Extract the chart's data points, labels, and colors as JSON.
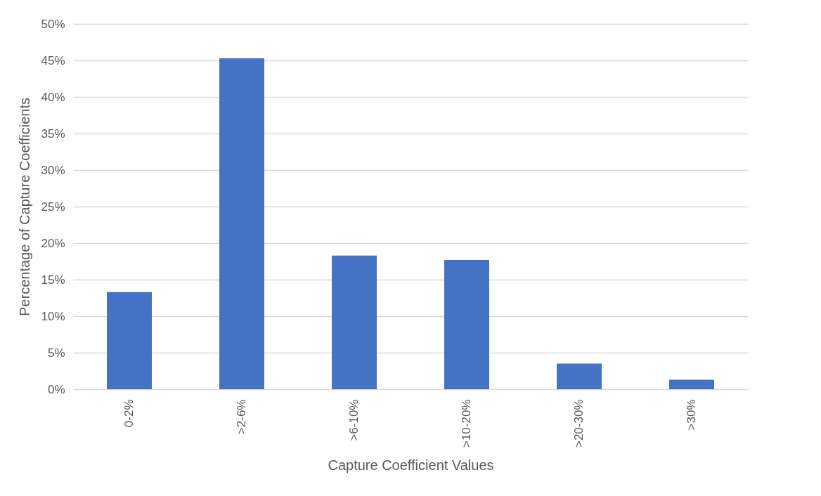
{
  "chart_data": {
    "type": "bar",
    "xlabel": "Capture Coefficient Values",
    "ylabel": "Percentage of Capture Coefficients",
    "categories": [
      "0-2%",
      ">2-6%",
      ">6-10%",
      ">10-20%",
      ">20-30%",
      ">30%"
    ],
    "values": [
      13.3,
      45.3,
      18.3,
      17.7,
      3.5,
      1.3
    ],
    "color": "#4472c4",
    "ylim": [
      0,
      50
    ],
    "yticks": [
      {
        "value": 0,
        "label": "0%"
      },
      {
        "value": 5,
        "label": "5%"
      },
      {
        "value": 10,
        "label": "10%"
      },
      {
        "value": 15,
        "label": "15%"
      },
      {
        "value": 20,
        "label": "20%"
      },
      {
        "value": 25,
        "label": "25%"
      },
      {
        "value": 30,
        "label": "30%"
      },
      {
        "value": 35,
        "label": "35%"
      },
      {
        "value": 40,
        "label": "40%"
      },
      {
        "value": 45,
        "label": "45%"
      },
      {
        "value": 50,
        "label": "50%"
      }
    ],
    "grid": "y"
  }
}
